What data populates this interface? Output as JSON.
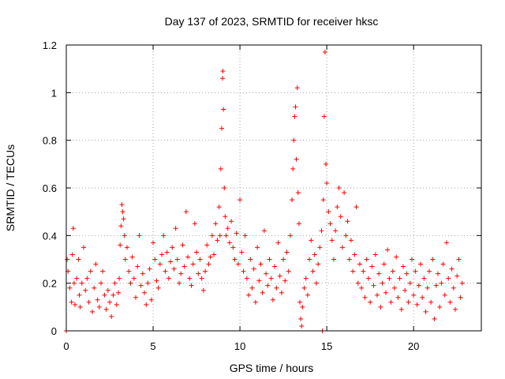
{
  "chart_data": {
    "type": "scatter",
    "title": "Day 137 of 2023, SRMTID for receiver hksc",
    "xlabel": "GPS time / hours",
    "ylabel": "SRMTID / TECUs",
    "xlim": [
      0,
      23.9
    ],
    "ylim": [
      0,
      1.2
    ],
    "xticks": [
      0,
      5,
      10,
      15,
      20
    ],
    "yticks": [
      0,
      0.2,
      0.4,
      0.6,
      0.8,
      1,
      1.2
    ],
    "xtick_labels": [
      "0",
      "5",
      "10",
      "15",
      "20"
    ],
    "ytick_labels": [
      "0",
      "0.2",
      "0.4",
      "0.6",
      "0.8",
      "1",
      "1.2"
    ],
    "grid": true,
    "marker": "+",
    "color": "#ff0000",
    "series": [
      {
        "name": "SRMTID",
        "points": [
          [
            0.0,
            0.0
          ],
          [
            14.75,
            0.0
          ],
          [
            0.05,
            0.3
          ],
          [
            0.1,
            0.25
          ],
          [
            0.2,
            0.18
          ],
          [
            0.3,
            0.12
          ],
          [
            0.35,
            0.32
          ],
          [
            0.4,
            0.43
          ],
          [
            0.45,
            0.2
          ],
          [
            0.5,
            0.11
          ],
          [
            0.6,
            0.22
          ],
          [
            0.7,
            0.3
          ],
          [
            0.75,
            0.15
          ],
          [
            0.8,
            0.1
          ],
          [
            0.9,
            0.2
          ],
          [
            1.0,
            0.35
          ],
          [
            1.1,
            0.17
          ],
          [
            1.2,
            0.22
          ],
          [
            1.3,
            0.12
          ],
          [
            1.4,
            0.25
          ],
          [
            1.5,
            0.08
          ],
          [
            1.6,
            0.18
          ],
          [
            1.7,
            0.28
          ],
          [
            1.8,
            0.13
          ],
          [
            1.9,
            0.1
          ],
          [
            2.0,
            0.2
          ],
          [
            2.1,
            0.25
          ],
          [
            2.2,
            0.15
          ],
          [
            2.3,
            0.09
          ],
          [
            2.4,
            0.17
          ],
          [
            2.5,
            0.12
          ],
          [
            2.6,
            0.06
          ],
          [
            2.7,
            0.15
          ],
          [
            2.8,
            0.2
          ],
          [
            2.9,
            0.11
          ],
          [
            3.0,
            0.16
          ],
          [
            3.05,
            0.22
          ],
          [
            3.1,
            0.36
          ],
          [
            3.15,
            0.44
          ],
          [
            3.2,
            0.53
          ],
          [
            3.25,
            0.5
          ],
          [
            3.3,
            0.47
          ],
          [
            3.35,
            0.4
          ],
          [
            3.4,
            0.3
          ],
          [
            3.5,
            0.35
          ],
          [
            3.6,
            0.25
          ],
          [
            3.7,
            0.2
          ],
          [
            3.8,
            0.31
          ],
          [
            3.9,
            0.22
          ],
          [
            4.0,
            0.14
          ],
          [
            4.1,
            0.27
          ],
          [
            4.2,
            0.4
          ],
          [
            4.3,
            0.19
          ],
          [
            4.4,
            0.24
          ],
          [
            4.5,
            0.16
          ],
          [
            4.6,
            0.11
          ],
          [
            4.7,
            0.2
          ],
          [
            4.8,
            0.26
          ],
          [
            4.9,
            0.13
          ],
          [
            5.0,
            0.37
          ],
          [
            5.1,
            0.3
          ],
          [
            5.2,
            0.21
          ],
          [
            5.3,
            0.18
          ],
          [
            5.4,
            0.28
          ],
          [
            5.5,
            0.32
          ],
          [
            5.6,
            0.4
          ],
          [
            5.7,
            0.25
          ],
          [
            5.8,
            0.33
          ],
          [
            5.9,
            0.22
          ],
          [
            6.0,
            0.29
          ],
          [
            6.1,
            0.35
          ],
          [
            6.2,
            0.26
          ],
          [
            6.3,
            0.43
          ],
          [
            6.4,
            0.3
          ],
          [
            6.5,
            0.2
          ],
          [
            6.6,
            0.24
          ],
          [
            6.7,
            0.36
          ],
          [
            6.8,
            0.27
          ],
          [
            6.9,
            0.5
          ],
          [
            7.0,
            0.31
          ],
          [
            7.1,
            0.22
          ],
          [
            7.2,
            0.19
          ],
          [
            7.3,
            0.28
          ],
          [
            7.4,
            0.45
          ],
          [
            7.5,
            0.33
          ],
          [
            7.6,
            0.24
          ],
          [
            7.7,
            0.3
          ],
          [
            7.8,
            0.22
          ],
          [
            7.9,
            0.17
          ],
          [
            8.0,
            0.25
          ],
          [
            8.1,
            0.36
          ],
          [
            8.2,
            0.28
          ],
          [
            8.3,
            0.31
          ],
          [
            8.4,
            0.4
          ],
          [
            8.5,
            0.32
          ],
          [
            8.6,
            0.45
          ],
          [
            8.7,
            0.38
          ],
          [
            8.8,
            0.52
          ],
          [
            8.85,
            0.4
          ],
          [
            8.9,
            0.68
          ],
          [
            8.95,
            0.85
          ],
          [
            9.0,
            1.06
          ],
          [
            9.02,
            1.09
          ],
          [
            9.05,
            0.93
          ],
          [
            9.1,
            0.6
          ],
          [
            9.15,
            0.48
          ],
          [
            9.2,
            0.4
          ],
          [
            9.3,
            0.43
          ],
          [
            9.4,
            0.37
          ],
          [
            9.5,
            0.46
          ],
          [
            9.6,
            0.35
          ],
          [
            9.7,
            0.3
          ],
          [
            9.8,
            0.41
          ],
          [
            9.9,
            0.28
          ],
          [
            10.0,
            0.55
          ],
          [
            10.1,
            0.33
          ],
          [
            10.2,
            0.25
          ],
          [
            10.3,
            0.4
          ],
          [
            10.4,
            0.22
          ],
          [
            10.5,
            0.15
          ],
          [
            10.6,
            0.3
          ],
          [
            10.7,
            0.18
          ],
          [
            10.8,
            0.26
          ],
          [
            10.9,
            0.12
          ],
          [
            11.0,
            0.35
          ],
          [
            11.1,
            0.21
          ],
          [
            11.2,
            0.28
          ],
          [
            11.3,
            0.16
          ],
          [
            11.4,
            0.42
          ],
          [
            11.5,
            0.24
          ],
          [
            11.6,
            0.19
          ],
          [
            11.7,
            0.3
          ],
          [
            11.8,
            0.22
          ],
          [
            11.9,
            0.13
          ],
          [
            12.0,
            0.27
          ],
          [
            12.1,
            0.18
          ],
          [
            12.2,
            0.37
          ],
          [
            12.3,
            0.23
          ],
          [
            12.4,
            0.16
          ],
          [
            12.5,
            0.3
          ],
          [
            12.6,
            0.21
          ],
          [
            12.7,
            0.33
          ],
          [
            12.8,
            0.25
          ],
          [
            12.9,
            0.4
          ],
          [
            13.0,
            0.55
          ],
          [
            13.05,
            0.68
          ],
          [
            13.1,
            0.8
          ],
          [
            13.15,
            0.9
          ],
          [
            13.2,
            0.94
          ],
          [
            13.25,
            0.72
          ],
          [
            13.3,
            1.02
          ],
          [
            13.35,
            0.58
          ],
          [
            13.4,
            0.45
          ],
          [
            13.45,
            0.12
          ],
          [
            13.5,
            0.05
          ],
          [
            13.55,
            0.02
          ],
          [
            13.6,
            0.1
          ],
          [
            13.7,
            0.18
          ],
          [
            13.8,
            0.22
          ],
          [
            13.9,
            0.15
          ],
          [
            14.0,
            0.3
          ],
          [
            14.1,
            0.38
          ],
          [
            14.2,
            0.25
          ],
          [
            14.3,
            0.32
          ],
          [
            14.4,
            0.2
          ],
          [
            14.5,
            0.28
          ],
          [
            14.6,
            0.35
          ],
          [
            14.7,
            0.42
          ],
          [
            14.8,
            0.55
          ],
          [
            14.85,
            0.9
          ],
          [
            14.9,
            1.17
          ],
          [
            14.95,
            0.7
          ],
          [
            15.0,
            0.62
          ],
          [
            15.1,
            0.5
          ],
          [
            15.2,
            0.45
          ],
          [
            15.3,
            0.38
          ],
          [
            15.4,
            0.3
          ],
          [
            15.5,
            0.42
          ],
          [
            15.6,
            0.52
          ],
          [
            15.7,
            0.6
          ],
          [
            15.8,
            0.48
          ],
          [
            15.9,
            0.35
          ],
          [
            16.0,
            0.58
          ],
          [
            16.1,
            0.4
          ],
          [
            16.2,
            0.46
          ],
          [
            16.3,
            0.3
          ],
          [
            16.4,
            0.38
          ],
          [
            16.5,
            0.25
          ],
          [
            16.6,
            0.32
          ],
          [
            16.7,
            0.52
          ],
          [
            16.8,
            0.2
          ],
          [
            16.9,
            0.28
          ],
          [
            17.0,
            0.18
          ],
          [
            17.1,
            0.25
          ],
          [
            17.2,
            0.14
          ],
          [
            17.3,
            0.3
          ],
          [
            17.4,
            0.22
          ],
          [
            17.5,
            0.12
          ],
          [
            17.6,
            0.27
          ],
          [
            17.7,
            0.19
          ],
          [
            17.8,
            0.32
          ],
          [
            17.9,
            0.15
          ],
          [
            18.0,
            0.24
          ],
          [
            18.1,
            0.1
          ],
          [
            18.2,
            0.2
          ],
          [
            18.3,
            0.28
          ],
          [
            18.4,
            0.16
          ],
          [
            18.5,
            0.34
          ],
          [
            18.6,
            0.22
          ],
          [
            18.7,
            0.12
          ],
          [
            18.8,
            0.25
          ],
          [
            18.9,
            0.18
          ],
          [
            19.0,
            0.31
          ],
          [
            19.1,
            0.14
          ],
          [
            19.2,
            0.22
          ],
          [
            19.3,
            0.09
          ],
          [
            19.4,
            0.27
          ],
          [
            19.5,
            0.17
          ],
          [
            19.6,
            0.24
          ],
          [
            19.7,
            0.12
          ],
          [
            19.8,
            0.2
          ],
          [
            19.9,
            0.3
          ],
          [
            20.0,
            0.15
          ],
          [
            20.1,
            0.25
          ],
          [
            20.2,
            0.11
          ],
          [
            20.3,
            0.19
          ],
          [
            20.4,
            0.28
          ],
          [
            20.5,
            0.14
          ],
          [
            20.6,
            0.22
          ],
          [
            20.7,
            0.08
          ],
          [
            20.8,
            0.18
          ],
          [
            20.9,
            0.25
          ],
          [
            21.0,
            0.12
          ],
          [
            21.1,
            0.3
          ],
          [
            21.2,
            0.05
          ],
          [
            21.3,
            0.19
          ],
          [
            21.4,
            0.24
          ],
          [
            21.5,
            0.1
          ],
          [
            21.6,
            0.2
          ],
          [
            21.7,
            0.28
          ],
          [
            21.8,
            0.15
          ],
          [
            21.9,
            0.37
          ],
          [
            22.0,
            0.22
          ],
          [
            22.1,
            0.12
          ],
          [
            22.2,
            0.26
          ],
          [
            22.3,
            0.18
          ],
          [
            22.4,
            0.09
          ],
          [
            22.5,
            0.23
          ],
          [
            22.6,
            0.3
          ],
          [
            22.7,
            0.14
          ],
          [
            22.8,
            0.2
          ]
        ]
      }
    ]
  }
}
